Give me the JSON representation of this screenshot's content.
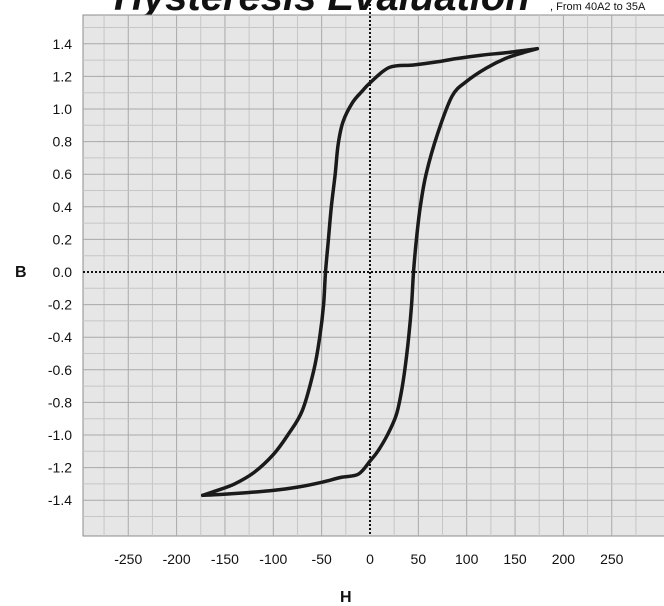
{
  "chart_data": {
    "type": "line",
    "title": "Hysteresis Evaluation",
    "subtitle": ", From 40A2 to 35A",
    "xlabel": "H",
    "ylabel": "B",
    "xlim": [
      -300,
      300
    ],
    "ylim": [
      -1.6,
      1.6
    ],
    "x_ticks": [
      "-250",
      "-200",
      "-150",
      "-100",
      "-50",
      "0",
      "50",
      "100",
      "150",
      "200",
      "250"
    ],
    "y_ticks": [
      "1.4",
      "1.2",
      "1.0",
      "0.8",
      "0.6",
      "0.4",
      "0.2",
      "0.0",
      "-0.2",
      "-0.4",
      "-0.6",
      "-0.8",
      "-1.0",
      "-1.2",
      "-1.4"
    ],
    "grid": true,
    "series": [
      {
        "color": "#1a1a1a",
        "x": [
          173,
          160,
          140,
          115,
          90,
          70,
          45,
          20,
          0,
          -8,
          -18,
          -28,
          -33,
          -36,
          -40,
          -43,
          -46,
          -48,
          -52,
          -58,
          -70,
          -85,
          -100,
          -120,
          -140,
          -158,
          -173
        ],
        "y": [
          1.37,
          1.36,
          1.345,
          1.33,
          1.31,
          1.29,
          1.27,
          1.255,
          1.16,
          1.11,
          1.04,
          0.92,
          0.78,
          0.6,
          0.4,
          0.2,
          0.0,
          -0.2,
          -0.4,
          -0.6,
          -0.85,
          -1.0,
          -1.12,
          -1.23,
          -1.3,
          -1.34,
          -1.37
        ]
      },
      {
        "color": "#1a1a1a",
        "x": [
          -173,
          -155,
          -130,
          -100,
          -75,
          -50,
          -30,
          -12,
          0,
          8,
          18,
          27,
          32,
          36,
          40,
          43,
          45,
          48,
          52,
          58,
          70,
          85,
          100,
          120,
          140,
          158,
          173
        ],
        "y": [
          -1.37,
          -1.365,
          -1.355,
          -1.34,
          -1.32,
          -1.29,
          -1.26,
          -1.24,
          -1.16,
          -1.1,
          -1.0,
          -0.88,
          -0.75,
          -0.6,
          -0.4,
          -0.2,
          0.0,
          0.2,
          0.4,
          0.6,
          0.85,
          1.08,
          1.17,
          1.25,
          1.31,
          1.345,
          1.37
        ]
      }
    ],
    "reference_lines": {
      "x": 0,
      "y": 0,
      "style": "dotted"
    }
  }
}
